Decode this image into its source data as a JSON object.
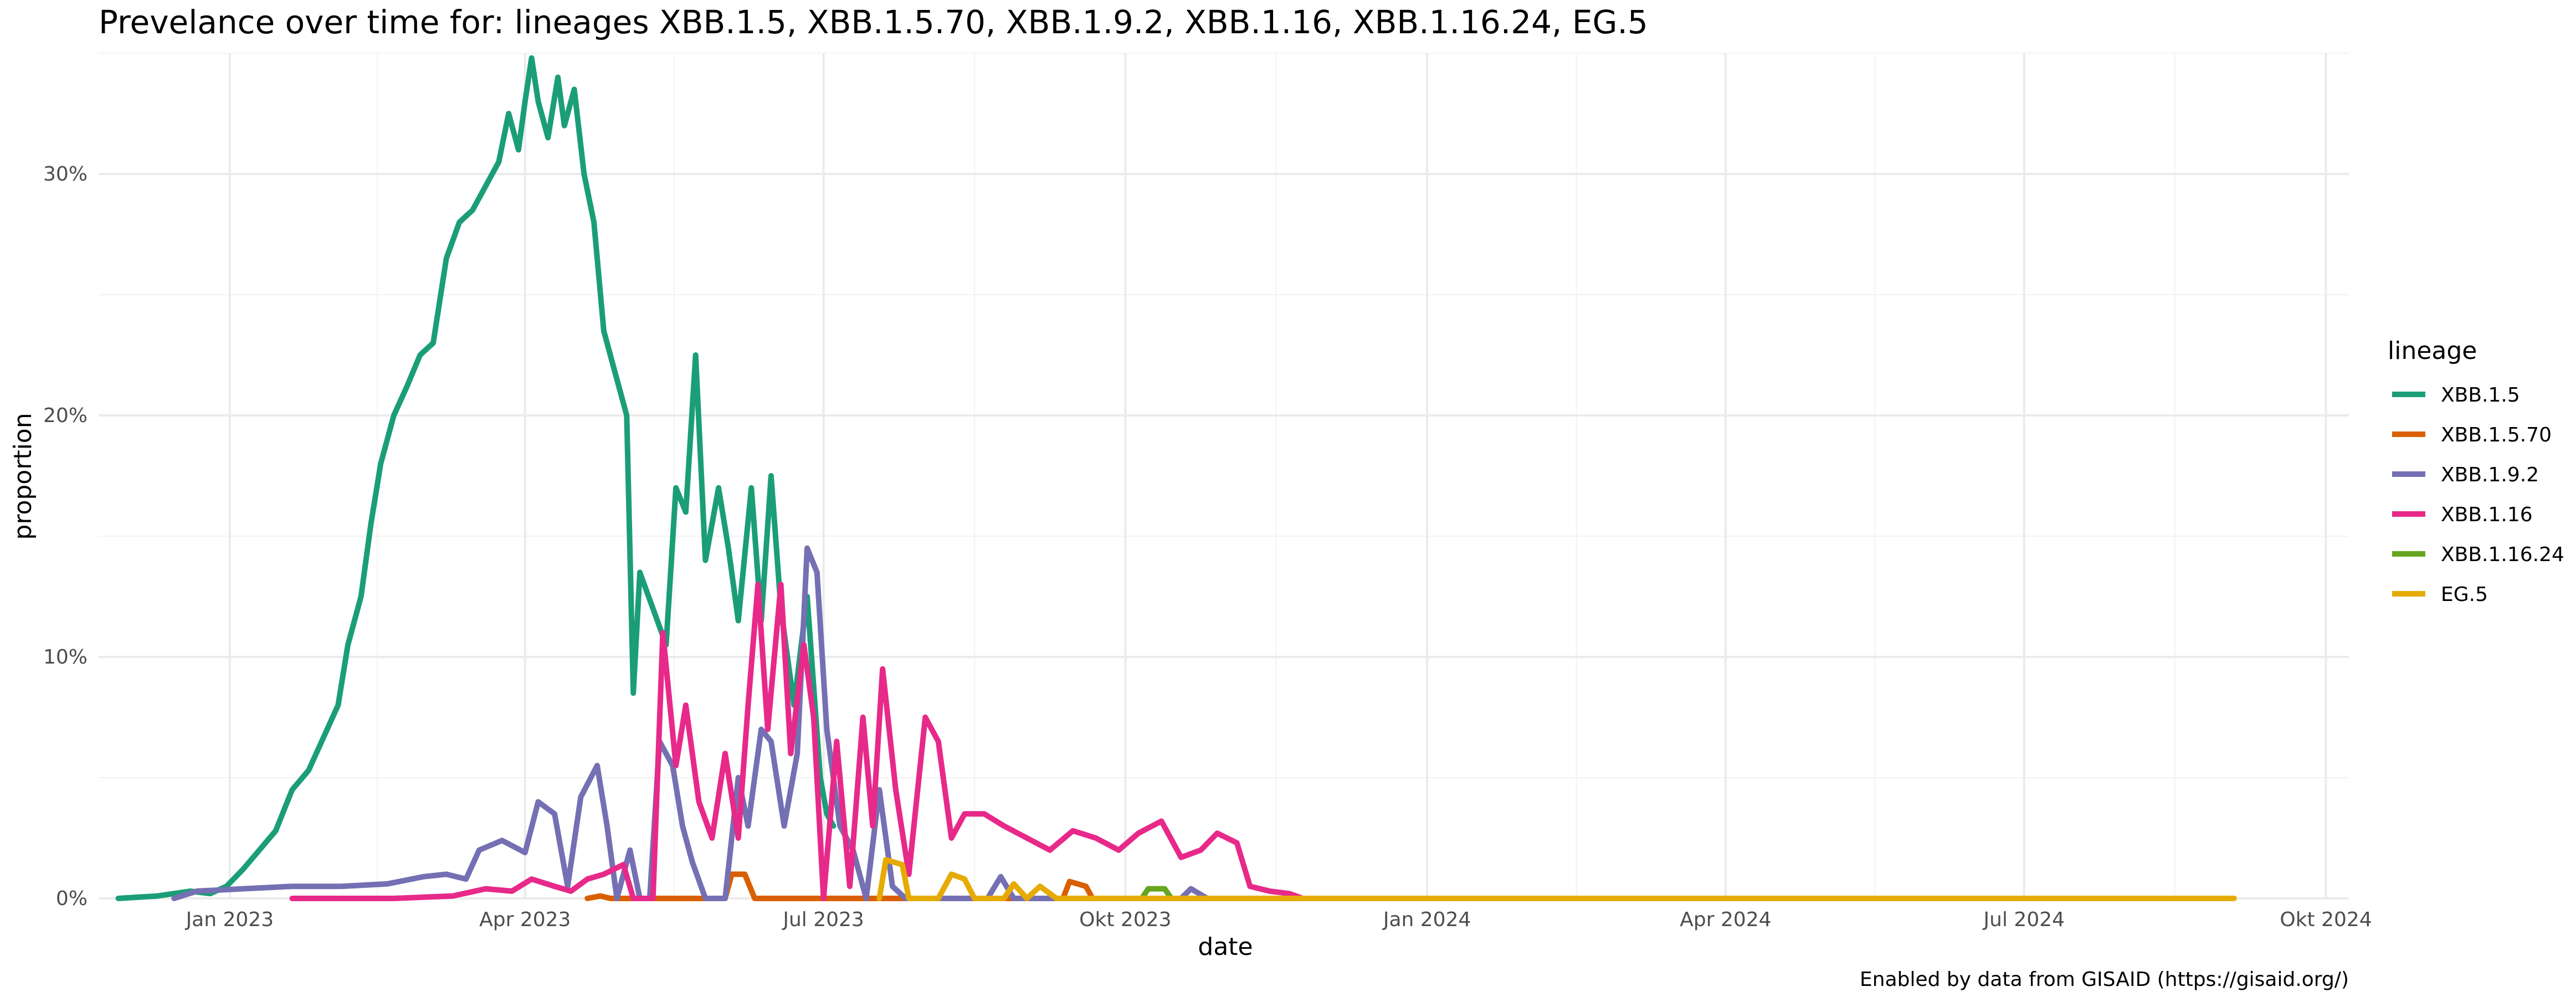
{
  "chart_data": {
    "type": "line",
    "title": "Prevelance over time for: lineages XBB.1.5, XBB.1.5.70, XBB.1.9.2, XBB.1.16, XBB.1.16.24, EG.5",
    "xlabel": "date",
    "ylabel": "proportion",
    "caption": "Enabled by data from GISAID (https://gisaid.org/)",
    "xlim": [
      "2022-11-22",
      "2024-10-08"
    ],
    "ylim": [
      0,
      35
    ],
    "x_ticks": [
      {
        "date": "2023-01-01",
        "label": "Jan 2023"
      },
      {
        "date": "2023-04-01",
        "label": "Apr 2023"
      },
      {
        "date": "2023-07-01",
        "label": "Jul 2023"
      },
      {
        "date": "2023-10-01",
        "label": "Okt 2023"
      },
      {
        "date": "2024-01-01",
        "label": "Jan 2024"
      },
      {
        "date": "2024-04-01",
        "label": "Apr 2024"
      },
      {
        "date": "2024-07-01",
        "label": "Jul 2024"
      },
      {
        "date": "2024-10-01",
        "label": "Okt 2024"
      }
    ],
    "y_ticks": [
      {
        "value": 0,
        "label": "0%"
      },
      {
        "value": 10,
        "label": "10%"
      },
      {
        "value": 20,
        "label": "20%"
      },
      {
        "value": 30,
        "label": "30%"
      }
    ],
    "grid": true,
    "legend": {
      "title": "lineage",
      "position": "right"
    },
    "series": [
      {
        "name": "XBB.1.5",
        "color": "#1b9e77",
        "points": [
          [
            "2022-11-28",
            0
          ],
          [
            "2022-12-10",
            0.1
          ],
          [
            "2022-12-20",
            0.3
          ],
          [
            "2022-12-26",
            0.2
          ],
          [
            "2022-12-31",
            0.5
          ],
          [
            "2023-01-05",
            1.2
          ],
          [
            "2023-01-10",
            2.0
          ],
          [
            "2023-01-15",
            2.8
          ],
          [
            "2023-01-20",
            4.5
          ],
          [
            "2023-01-25",
            5.3
          ],
          [
            "2023-01-30",
            6.8
          ],
          [
            "2023-02-03",
            8.0
          ],
          [
            "2023-02-06",
            10.5
          ],
          [
            "2023-02-10",
            12.5
          ],
          [
            "2023-02-13",
            15.5
          ],
          [
            "2023-02-16",
            18.0
          ],
          [
            "2023-02-20",
            20.0
          ],
          [
            "2023-02-24",
            21.2
          ],
          [
            "2023-02-28",
            22.5
          ],
          [
            "2023-03-04",
            23.0
          ],
          [
            "2023-03-08",
            26.5
          ],
          [
            "2023-03-12",
            28.0
          ],
          [
            "2023-03-16",
            28.5
          ],
          [
            "2023-03-20",
            29.5
          ],
          [
            "2023-03-24",
            30.5
          ],
          [
            "2023-03-27",
            32.5
          ],
          [
            "2023-03-30",
            31.0
          ],
          [
            "2023-04-01",
            33.0
          ],
          [
            "2023-04-03",
            34.8
          ],
          [
            "2023-04-05",
            33.0
          ],
          [
            "2023-04-08",
            31.5
          ],
          [
            "2023-04-11",
            34.0
          ],
          [
            "2023-04-13",
            32.0
          ],
          [
            "2023-04-16",
            33.5
          ],
          [
            "2023-04-19",
            30.0
          ],
          [
            "2023-04-22",
            28.0
          ],
          [
            "2023-04-25",
            23.5
          ],
          [
            "2023-04-28",
            22.0
          ],
          [
            "2023-05-02",
            20.0
          ],
          [
            "2023-05-04",
            8.5
          ],
          [
            "2023-05-06",
            13.5
          ],
          [
            "2023-05-10",
            12.0
          ],
          [
            "2023-05-14",
            10.5
          ],
          [
            "2023-05-17",
            17.0
          ],
          [
            "2023-05-20",
            16.0
          ],
          [
            "2023-05-23",
            22.5
          ],
          [
            "2023-05-26",
            14.0
          ],
          [
            "2023-05-30",
            17.0
          ],
          [
            "2023-06-02",
            14.5
          ],
          [
            "2023-06-05",
            11.5
          ],
          [
            "2023-06-09",
            17.0
          ],
          [
            "2023-06-12",
            11.5
          ],
          [
            "2023-06-15",
            17.5
          ],
          [
            "2023-06-18",
            12.0
          ],
          [
            "2023-06-22",
            8.0
          ],
          [
            "2023-06-26",
            12.5
          ],
          [
            "2023-06-30",
            5.0
          ],
          [
            "2023-07-02",
            3.5
          ],
          [
            "2023-07-04",
            3.0
          ]
        ]
      },
      {
        "name": "XBB.1.5.70",
        "color": "#d95f02",
        "points": [
          [
            "2023-04-20",
            0
          ],
          [
            "2023-04-24",
            0.1
          ],
          [
            "2023-04-27",
            0
          ],
          [
            "2023-06-01",
            0
          ],
          [
            "2023-06-03",
            1.0
          ],
          [
            "2023-06-07",
            1.0
          ],
          [
            "2023-06-10",
            0
          ],
          [
            "2023-09-12",
            0
          ],
          [
            "2023-09-14",
            0.7
          ],
          [
            "2023-09-19",
            0.5
          ],
          [
            "2023-09-21",
            0
          ]
        ]
      },
      {
        "name": "XBB.1.9.2",
        "color": "#7570b3",
        "points": [
          [
            "2022-12-15",
            0
          ],
          [
            "2022-12-22",
            0.3
          ],
          [
            "2023-01-05",
            0.4
          ],
          [
            "2023-01-20",
            0.5
          ],
          [
            "2023-02-04",
            0.5
          ],
          [
            "2023-02-18",
            0.6
          ],
          [
            "2023-03-01",
            0.9
          ],
          [
            "2023-03-08",
            1.0
          ],
          [
            "2023-03-14",
            0.8
          ],
          [
            "2023-03-18",
            2.0
          ],
          [
            "2023-03-25",
            2.4
          ],
          [
            "2023-04-01",
            1.9
          ],
          [
            "2023-04-05",
            4.0
          ],
          [
            "2023-04-10",
            3.5
          ],
          [
            "2023-04-14",
            0.5
          ],
          [
            "2023-04-18",
            4.2
          ],
          [
            "2023-04-23",
            5.5
          ],
          [
            "2023-04-26",
            3.0
          ],
          [
            "2023-04-29",
            0
          ],
          [
            "2023-05-03",
            2.0
          ],
          [
            "2023-05-06",
            0
          ],
          [
            "2023-05-09",
            0
          ],
          [
            "2023-05-12",
            6.5
          ],
          [
            "2023-05-16",
            5.5
          ],
          [
            "2023-05-19",
            3.0
          ],
          [
            "2023-05-22",
            1.5
          ],
          [
            "2023-05-26",
            0
          ],
          [
            "2023-06-01",
            0
          ],
          [
            "2023-06-05",
            5.0
          ],
          [
            "2023-06-08",
            3.0
          ],
          [
            "2023-06-12",
            7.0
          ],
          [
            "2023-06-15",
            6.5
          ],
          [
            "2023-06-19",
            3.0
          ],
          [
            "2023-06-23",
            6.0
          ],
          [
            "2023-06-26",
            14.5
          ],
          [
            "2023-06-29",
            13.5
          ],
          [
            "2023-07-02",
            7.0
          ],
          [
            "2023-07-06",
            3.0
          ],
          [
            "2023-07-10",
            2.0
          ],
          [
            "2023-07-14",
            0
          ],
          [
            "2023-07-18",
            4.5
          ],
          [
            "2023-07-22",
            0.5
          ],
          [
            "2023-07-26",
            0
          ],
          [
            "2023-08-20",
            0
          ],
          [
            "2023-08-24",
            0.9
          ],
          [
            "2023-08-28",
            0
          ],
          [
            "2023-10-18",
            0
          ],
          [
            "2023-10-21",
            0.4
          ],
          [
            "2023-10-26",
            0
          ]
        ]
      },
      {
        "name": "XBB.1.16",
        "color": "#e7298a",
        "points": [
          [
            "2023-01-20",
            0
          ],
          [
            "2023-02-20",
            0
          ],
          [
            "2023-03-10",
            0.1
          ],
          [
            "2023-03-20",
            0.4
          ],
          [
            "2023-03-28",
            0.3
          ],
          [
            "2023-04-03",
            0.8
          ],
          [
            "2023-04-10",
            0.5
          ],
          [
            "2023-04-15",
            0.3
          ],
          [
            "2023-04-20",
            0.8
          ],
          [
            "2023-04-25",
            1.0
          ],
          [
            "2023-05-01",
            1.4
          ],
          [
            "2023-05-04",
            0
          ],
          [
            "2023-05-10",
            0
          ],
          [
            "2023-05-13",
            11.0
          ],
          [
            "2023-05-17",
            5.5
          ],
          [
            "2023-05-20",
            8.0
          ],
          [
            "2023-05-24",
            4.0
          ],
          [
            "2023-05-28",
            2.5
          ],
          [
            "2023-06-01",
            6.0
          ],
          [
            "2023-06-05",
            2.5
          ],
          [
            "2023-06-08",
            8.0
          ],
          [
            "2023-06-11",
            13.0
          ],
          [
            "2023-06-14",
            7.0
          ],
          [
            "2023-06-18",
            13.0
          ],
          [
            "2023-06-21",
            6.0
          ],
          [
            "2023-06-25",
            10.5
          ],
          [
            "2023-06-28",
            7.5
          ],
          [
            "2023-07-01",
            0
          ],
          [
            "2023-07-05",
            6.5
          ],
          [
            "2023-07-09",
            0.5
          ],
          [
            "2023-07-13",
            7.5
          ],
          [
            "2023-07-16",
            3.0
          ],
          [
            "2023-07-19",
            9.5
          ],
          [
            "2023-07-23",
            4.5
          ],
          [
            "2023-07-27",
            1.0
          ],
          [
            "2023-08-01",
            7.5
          ],
          [
            "2023-08-05",
            6.5
          ],
          [
            "2023-08-09",
            2.5
          ],
          [
            "2023-08-13",
            3.5
          ],
          [
            "2023-08-19",
            3.5
          ],
          [
            "2023-08-25",
            3.0
          ],
          [
            "2023-09-01",
            2.5
          ],
          [
            "2023-09-08",
            2.0
          ],
          [
            "2023-09-15",
            2.8
          ],
          [
            "2023-09-22",
            2.5
          ],
          [
            "2023-09-29",
            2.0
          ],
          [
            "2023-10-05",
            2.7
          ],
          [
            "2023-10-12",
            3.2
          ],
          [
            "2023-10-18",
            1.7
          ],
          [
            "2023-10-24",
            2.0
          ],
          [
            "2023-10-29",
            2.7
          ],
          [
            "2023-11-04",
            2.3
          ],
          [
            "2023-11-08",
            0.5
          ],
          [
            "2023-11-14",
            0.3
          ],
          [
            "2023-11-20",
            0.2
          ],
          [
            "2023-11-24",
            0
          ]
        ]
      },
      {
        "name": "XBB.1.16.24",
        "color": "#66a61e",
        "points": [
          [
            "2023-10-06",
            0
          ],
          [
            "2023-10-08",
            0.4
          ],
          [
            "2023-10-13",
            0.4
          ],
          [
            "2023-10-15",
            0
          ]
        ]
      },
      {
        "name": "EG.5",
        "color": "#e6ab02",
        "points": [
          [
            "2023-07-18",
            0
          ],
          [
            "2023-07-20",
            1.6
          ],
          [
            "2023-07-25",
            1.4
          ],
          [
            "2023-07-27",
            0
          ],
          [
            "2023-08-05",
            0
          ],
          [
            "2023-08-09",
            1.0
          ],
          [
            "2023-08-13",
            0.8
          ],
          [
            "2023-08-16",
            0
          ],
          [
            "2023-08-25",
            0
          ],
          [
            "2023-08-28",
            0.6
          ],
          [
            "2023-09-01",
            0
          ],
          [
            "2023-09-05",
            0.5
          ],
          [
            "2023-09-10",
            0
          ],
          [
            "2024-09-03",
            0
          ]
        ]
      }
    ]
  }
}
